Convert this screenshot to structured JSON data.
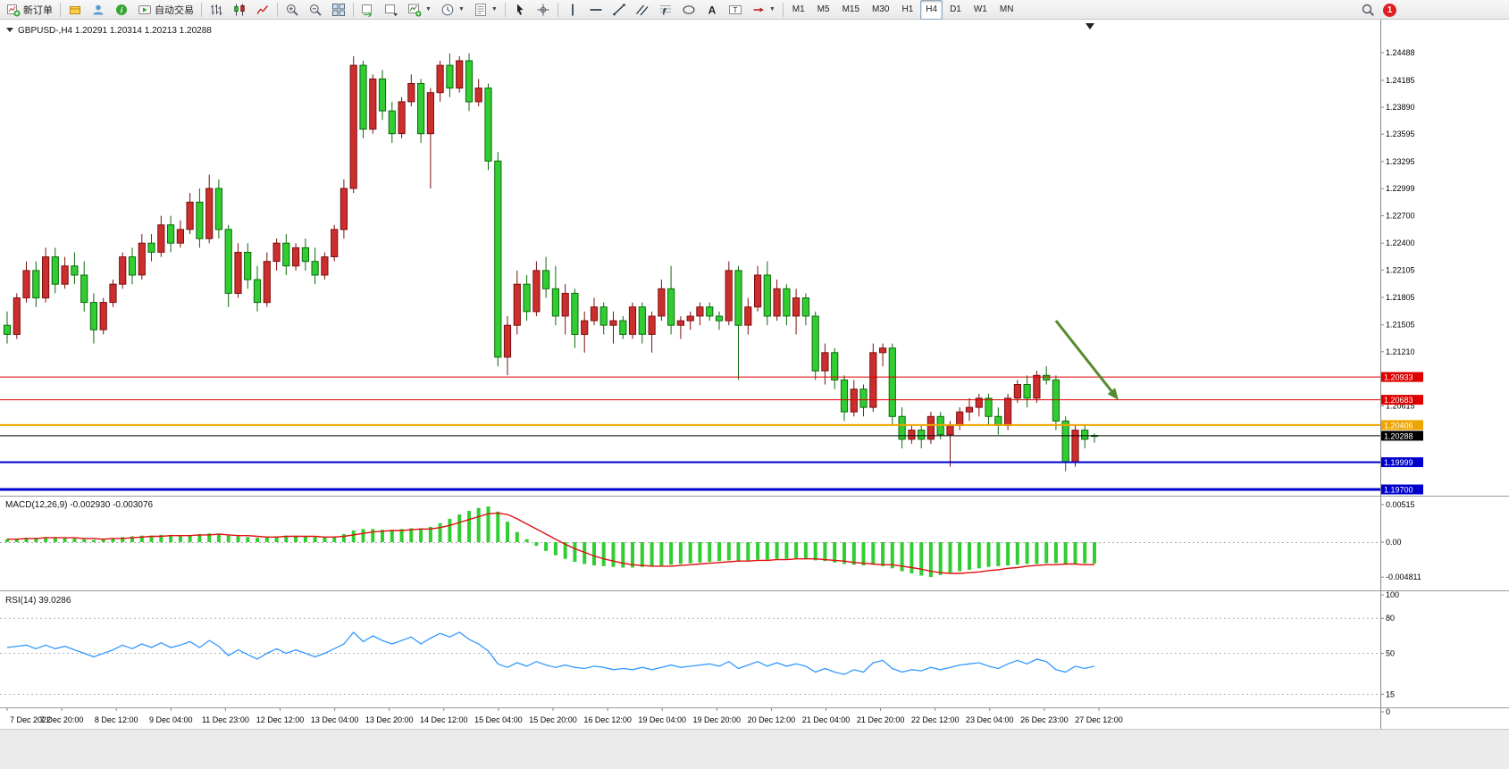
{
  "toolbar": {
    "items": [
      {
        "name": "new-order-button",
        "icon": "new-order-icon",
        "label": "新订单"
      },
      {
        "sep": true
      },
      {
        "name": "market-watch-button",
        "icon": "quotes-icon"
      },
      {
        "name": "data-window-button",
        "icon": "profile-icon"
      },
      {
        "name": "news-button",
        "icon": "news-icon"
      },
      {
        "name": "autotrading-button",
        "icon": "autotrade-icon",
        "label": "自动交易"
      },
      {
        "sep": true
      },
      {
        "name": "bar-chart-button",
        "icon": "ohlc-bars-icon"
      },
      {
        "name": "candlestick-chart-button",
        "icon": "candlestick-icon"
      },
      {
        "name": "line-chart-button",
        "icon": "line-chart-icon"
      },
      {
        "sep": true
      },
      {
        "name": "zoom-in-button",
        "icon": "zoom-in-icon"
      },
      {
        "name": "zoom-out-button",
        "icon": "zoom-out-icon"
      },
      {
        "name": "tile-windows-button",
        "icon": "tile-windows-icon"
      },
      {
        "sep": true
      },
      {
        "name": "auto-scroll-button",
        "icon": "auto-scroll-icon"
      },
      {
        "name": "chart-shift-button",
        "icon": "chart-shift-icon"
      },
      {
        "name": "indicators-button",
        "icon": "indicators-icon",
        "caret": true
      },
      {
        "name": "periods-button",
        "icon": "periods-icon",
        "caret": true
      },
      {
        "name": "templates-button",
        "icon": "templates-icon",
        "caret": true
      },
      {
        "sep": true
      },
      {
        "name": "cursor-button",
        "icon": "cursor-icon"
      },
      {
        "name": "crosshair-button",
        "icon": "crosshair-icon"
      },
      {
        "sep": true
      },
      {
        "name": "vertical-line-button",
        "icon": "vline-icon"
      },
      {
        "name": "horizontal-line-button",
        "icon": "hline-icon"
      },
      {
        "name": "trendline-button",
        "icon": "trendline-icon"
      },
      {
        "name": "channel-button",
        "icon": "channel-icon"
      },
      {
        "name": "fibonacci-button",
        "icon": "fibonacci-icon"
      },
      {
        "name": "shapes-button",
        "icon": "shapes-icon"
      },
      {
        "name": "text-button",
        "icon": "text-icon"
      },
      {
        "name": "label-button",
        "icon": "label-icon"
      },
      {
        "name": "arrows-button",
        "icon": "arrows-icon",
        "caret": true
      },
      {
        "sep": true
      }
    ],
    "timeframes": [
      "M1",
      "M5",
      "M15",
      "M30",
      "H1",
      "H4",
      "D1",
      "W1",
      "MN"
    ],
    "active_timeframe": "H4",
    "notification_count": "1"
  },
  "symbol_header": {
    "symbol": "GBPUSD-",
    "period": "H4",
    "open": "1.20291",
    "high": "1.20314",
    "low": "1.20213",
    "close": "1.20288"
  },
  "indicators": {
    "macd": {
      "title": "MACD(12,26,9)",
      "main_value": "-0.002930",
      "signal_value": "-0.003076",
      "axis_labels": [
        "0.00515",
        "0.00",
        "-0.004811"
      ]
    },
    "rsi": {
      "title": "RSI(14)",
      "value": "39.0286",
      "axis_labels": [
        "100",
        "80",
        "50",
        "15",
        "0"
      ],
      "levels": [
        80,
        50,
        15
      ]
    }
  },
  "chart_data": {
    "type": "candlestick",
    "symbol": "GBPUSD-",
    "timeframe": "H4",
    "price_axis_labels": [
      "1.24488",
      "1.24185",
      "1.23890",
      "1.23595",
      "1.23295",
      "1.22999",
      "1.22700",
      "1.22400",
      "1.22105",
      "1.21805",
      "1.21505",
      "1.21210",
      "1.20615"
    ],
    "date_labels": [
      "7 Dec 2022",
      "7 Dec 20:00",
      "8 Dec 12:00",
      "9 Dec 04:00",
      "11 Dec 23:00",
      "12 Dec 12:00",
      "13 Dec 04:00",
      "13 Dec 20:00",
      "14 Dec 12:00",
      "15 Dec 04:00",
      "15 Dec 20:00",
      "16 Dec 12:00",
      "19 Dec 04:00",
      "19 Dec 20:00",
      "20 Dec 12:00",
      "21 Dec 04:00",
      "21 Dec 20:00",
      "22 Dec 12:00",
      "23 Dec 04:00",
      "26 Dec 23:00",
      "27 Dec 12:00"
    ],
    "hlines": [
      {
        "price": 1.20933,
        "label": "1.20933",
        "color": "#dd0000",
        "width": 1
      },
      {
        "price": 1.20683,
        "label": "1.20683",
        "color": "#dd0000",
        "width": 1
      },
      {
        "price": 1.20406,
        "label": "1.20406",
        "color": "#efa500",
        "width": 2
      },
      {
        "price": 1.20288,
        "label": "1.20288",
        "color": "#000000",
        "width": 1
      },
      {
        "price": 1.19999,
        "label": "1.19999",
        "color": "#0000cc",
        "width": 2
      },
      {
        "price": 1.197,
        "label": "1.19700",
        "color": "#0000cc",
        "width": 3
      }
    ],
    "candles_ohlc": [
      [
        1.215,
        1.2165,
        1.213,
        1.214
      ],
      [
        1.214,
        1.2185,
        1.2135,
        1.218
      ],
      [
        1.218,
        1.222,
        1.2175,
        1.221
      ],
      [
        1.221,
        1.222,
        1.217,
        1.218
      ],
      [
        1.218,
        1.2235,
        1.2175,
        1.2225
      ],
      [
        1.2225,
        1.2235,
        1.2185,
        1.2195
      ],
      [
        1.2195,
        1.2225,
        1.219,
        1.2215
      ],
      [
        1.2215,
        1.223,
        1.2195,
        1.2205
      ],
      [
        1.2205,
        1.222,
        1.2165,
        1.2175
      ],
      [
        1.2175,
        1.2185,
        1.213,
        1.2145
      ],
      [
        1.2145,
        1.218,
        1.214,
        1.2175
      ],
      [
        1.2175,
        1.22,
        1.217,
        1.2195
      ],
      [
        1.2195,
        1.223,
        1.219,
        1.2225
      ],
      [
        1.2225,
        1.2235,
        1.2195,
        1.2205
      ],
      [
        1.2205,
        1.225,
        1.22,
        1.224
      ],
      [
        1.224,
        1.225,
        1.222,
        1.223
      ],
      [
        1.223,
        1.227,
        1.2225,
        1.226
      ],
      [
        1.226,
        1.227,
        1.223,
        1.224
      ],
      [
        1.224,
        1.2265,
        1.2235,
        1.2255
      ],
      [
        1.2255,
        1.2295,
        1.225,
        1.2285
      ],
      [
        1.2285,
        1.23,
        1.2235,
        1.2245
      ],
      [
        1.2245,
        1.2315,
        1.224,
        1.23
      ],
      [
        1.23,
        1.231,
        1.2245,
        1.2255
      ],
      [
        1.2255,
        1.226,
        1.217,
        1.2185
      ],
      [
        1.2185,
        1.224,
        1.218,
        1.223
      ],
      [
        1.223,
        1.224,
        1.219,
        1.22
      ],
      [
        1.22,
        1.2215,
        1.2165,
        1.2175
      ],
      [
        1.2175,
        1.223,
        1.217,
        1.222
      ],
      [
        1.222,
        1.2245,
        1.221,
        1.224
      ],
      [
        1.224,
        1.225,
        1.2205,
        1.2215
      ],
      [
        1.2215,
        1.224,
        1.221,
        1.2235
      ],
      [
        1.2235,
        1.2245,
        1.221,
        1.222
      ],
      [
        1.222,
        1.2235,
        1.2195,
        1.2205
      ],
      [
        1.2205,
        1.223,
        1.22,
        1.2225
      ],
      [
        1.2225,
        1.226,
        1.222,
        1.2255
      ],
      [
        1.2255,
        1.231,
        1.2245,
        1.23
      ],
      [
        1.23,
        1.2445,
        1.2295,
        1.2435
      ],
      [
        1.2435,
        1.244,
        1.2355,
        1.2365
      ],
      [
        1.2365,
        1.2425,
        1.236,
        1.242
      ],
      [
        1.242,
        1.243,
        1.2375,
        1.2385
      ],
      [
        1.2385,
        1.2395,
        1.235,
        1.236
      ],
      [
        1.236,
        1.24,
        1.2355,
        1.2395
      ],
      [
        1.2395,
        1.2425,
        1.239,
        1.2415
      ],
      [
        1.2415,
        1.242,
        1.235,
        1.236
      ],
      [
        1.236,
        1.241,
        1.23,
        1.2405
      ],
      [
        1.2405,
        1.244,
        1.2395,
        1.2435
      ],
      [
        1.2435,
        1.2448,
        1.24,
        1.241
      ],
      [
        1.241,
        1.2445,
        1.2405,
        1.244
      ],
      [
        1.244,
        1.2448,
        1.2385,
        1.2395
      ],
      [
        1.2395,
        1.242,
        1.239,
        1.241
      ],
      [
        1.241,
        1.2415,
        1.232,
        1.233
      ],
      [
        1.233,
        1.234,
        1.2105,
        1.2115
      ],
      [
        1.2115,
        1.216,
        1.2095,
        1.215
      ],
      [
        1.215,
        1.221,
        1.214,
        1.2195
      ],
      [
        1.2195,
        1.2205,
        1.2155,
        1.2165
      ],
      [
        1.2165,
        1.222,
        1.216,
        1.221
      ],
      [
        1.221,
        1.2225,
        1.218,
        1.219
      ],
      [
        1.219,
        1.2215,
        1.215,
        1.216
      ],
      [
        1.216,
        1.2195,
        1.214,
        1.2185
      ],
      [
        1.2185,
        1.219,
        1.2125,
        1.214
      ],
      [
        1.214,
        1.2165,
        1.212,
        1.2155
      ],
      [
        1.2155,
        1.218,
        1.215,
        1.217
      ],
      [
        1.217,
        1.2175,
        1.214,
        1.215
      ],
      [
        1.215,
        1.2165,
        1.213,
        1.2155
      ],
      [
        1.2155,
        1.216,
        1.2135,
        1.214
      ],
      [
        1.214,
        1.2175,
        1.2135,
        1.217
      ],
      [
        1.217,
        1.2175,
        1.213,
        1.214
      ],
      [
        1.214,
        1.2165,
        1.212,
        1.216
      ],
      [
        1.216,
        1.22,
        1.2155,
        1.219
      ],
      [
        1.219,
        1.2215,
        1.214,
        1.215
      ],
      [
        1.215,
        1.216,
        1.2135,
        1.2155
      ],
      [
        1.2155,
        1.2165,
        1.2145,
        1.216
      ],
      [
        1.216,
        1.2175,
        1.215,
        1.217
      ],
      [
        1.217,
        1.2175,
        1.2155,
        1.216
      ],
      [
        1.216,
        1.2165,
        1.2145,
        1.2155
      ],
      [
        1.2155,
        1.222,
        1.215,
        1.221
      ],
      [
        1.221,
        1.2215,
        1.209,
        1.215
      ],
      [
        1.215,
        1.218,
        1.214,
        1.217
      ],
      [
        1.217,
        1.2215,
        1.2165,
        1.2205
      ],
      [
        1.2205,
        1.222,
        1.215,
        1.216
      ],
      [
        1.216,
        1.22,
        1.2155,
        1.219
      ],
      [
        1.219,
        1.2195,
        1.215,
        1.216
      ],
      [
        1.216,
        1.219,
        1.214,
        1.218
      ],
      [
        1.218,
        1.2185,
        1.215,
        1.216
      ],
      [
        1.216,
        1.2165,
        1.209,
        1.21
      ],
      [
        1.21,
        1.213,
        1.2085,
        1.212
      ],
      [
        1.212,
        1.2125,
        1.208,
        1.209
      ],
      [
        1.209,
        1.2095,
        1.2045,
        1.2055
      ],
      [
        1.2055,
        1.209,
        1.205,
        1.208
      ],
      [
        1.208,
        1.2085,
        1.205,
        1.206
      ],
      [
        1.206,
        1.213,
        1.2055,
        1.212
      ],
      [
        1.212,
        1.213,
        1.2105,
        1.2125
      ],
      [
        1.2125,
        1.213,
        1.204,
        1.205
      ],
      [
        1.205,
        1.206,
        1.2015,
        1.2025
      ],
      [
        1.2025,
        1.204,
        1.202,
        1.2035
      ],
      [
        1.2035,
        1.204,
        1.2015,
        1.2025
      ],
      [
        1.2025,
        1.2055,
        1.202,
        1.205
      ],
      [
        1.205,
        1.2055,
        1.2025,
        1.203
      ],
      [
        1.203,
        1.2045,
        1.1995,
        1.204
      ],
      [
        1.204,
        1.206,
        1.2035,
        1.2055
      ],
      [
        1.2055,
        1.207,
        1.2045,
        1.206
      ],
      [
        1.206,
        1.2075,
        1.205,
        1.207
      ],
      [
        1.207,
        1.2075,
        1.204,
        1.205
      ],
      [
        1.205,
        1.206,
        1.203,
        1.204
      ],
      [
        1.204,
        1.2075,
        1.2035,
        1.207
      ],
      [
        1.207,
        1.209,
        1.2065,
        1.2085
      ],
      [
        1.2085,
        1.2095,
        1.206,
        1.207
      ],
      [
        1.207,
        1.21,
        1.2065,
        1.2095
      ],
      [
        1.2095,
        1.2105,
        1.2085,
        1.209
      ],
      [
        1.209,
        1.2095,
        1.2035,
        1.2045
      ],
      [
        1.2045,
        1.205,
        1.199,
        1.2
      ],
      [
        1.2,
        1.204,
        1.1995,
        1.2035
      ],
      [
        1.2035,
        1.204,
        1.2015,
        1.2025
      ],
      [
        1.20291,
        1.20314,
        1.20213,
        1.20288
      ]
    ],
    "macd_histogram": [
      0.0004,
      0.0005,
      0.0006,
      0.0006,
      0.0007,
      0.0007,
      0.0006,
      0.0005,
      0.0004,
      0.0003,
      0.0004,
      0.0005,
      0.0007,
      0.0008,
      0.0009,
      0.0009,
      0.001,
      0.001,
      0.0009,
      0.001,
      0.0011,
      0.0012,
      0.0011,
      0.0009,
      0.0008,
      0.0007,
      0.0006,
      0.0007,
      0.0008,
      0.0009,
      0.0009,
      0.0008,
      0.0007,
      0.0007,
      0.0008,
      0.0011,
      0.0016,
      0.0018,
      0.0018,
      0.0017,
      0.0017,
      0.0018,
      0.0019,
      0.0019,
      0.0021,
      0.0026,
      0.0032,
      0.0038,
      0.0043,
      0.0047,
      0.0049,
      0.0042,
      0.0028,
      0.0014,
      0.0004,
      -0.0005,
      -0.0012,
      -0.0018,
      -0.0023,
      -0.0027,
      -0.003,
      -0.0032,
      -0.0033,
      -0.0034,
      -0.0035,
      -0.0035,
      -0.0034,
      -0.0033,
      -0.0032,
      -0.0031,
      -0.003,
      -0.0029,
      -0.0028,
      -0.0027,
      -0.0026,
      -0.0025,
      -0.0026,
      -0.0025,
      -0.0024,
      -0.0024,
      -0.0023,
      -0.0023,
      -0.0022,
      -0.0023,
      -0.0025,
      -0.0026,
      -0.0028,
      -0.003,
      -0.0031,
      -0.0032,
      -0.0031,
      -0.0033,
      -0.0036,
      -0.004,
      -0.0043,
      -0.0046,
      -0.0048,
      -0.0045,
      -0.0042,
      -0.004,
      -0.0038,
      -0.0036,
      -0.0034,
      -0.0033,
      -0.0032,
      -0.0031,
      -0.003,
      -0.003,
      -0.0029,
      -0.0029,
      -0.00295,
      -0.003,
      -0.0029,
      -0.00293
    ],
    "macd_signal": [
      0.0004,
      0.0004,
      0.0005,
      0.0005,
      0.0006,
      0.0006,
      0.0006,
      0.0006,
      0.0005,
      0.0005,
      0.0004,
      0.0005,
      0.0005,
      0.0006,
      0.0007,
      0.0008,
      0.0008,
      0.0009,
      0.0009,
      0.0009,
      0.001,
      0.001,
      0.0011,
      0.001,
      0.0009,
      0.0009,
      0.0008,
      0.0007,
      0.0007,
      0.0008,
      0.0008,
      0.0008,
      0.0008,
      0.0007,
      0.0007,
      0.0008,
      0.001,
      0.0012,
      0.0014,
      0.0015,
      0.0016,
      0.0016,
      0.0017,
      0.0018,
      0.0018,
      0.002,
      0.0023,
      0.0027,
      0.0031,
      0.0035,
      0.0039,
      0.004,
      0.0038,
      0.0032,
      0.0025,
      0.0018,
      0.0011,
      0.0004,
      -0.0003,
      -0.0009,
      -0.0014,
      -0.0019,
      -0.0023,
      -0.0026,
      -0.0029,
      -0.0031,
      -0.0032,
      -0.0033,
      -0.0033,
      -0.0033,
      -0.0032,
      -0.0031,
      -0.003,
      -0.0029,
      -0.0028,
      -0.0027,
      -0.0026,
      -0.0026,
      -0.0025,
      -0.0025,
      -0.0024,
      -0.0024,
      -0.0023,
      -0.0023,
      -0.0023,
      -0.0024,
      -0.0025,
      -0.0026,
      -0.0028,
      -0.0029,
      -0.003,
      -0.0031,
      -0.0031,
      -0.0033,
      -0.0035,
      -0.0037,
      -0.004,
      -0.0042,
      -0.0043,
      -0.0043,
      -0.0042,
      -0.0041,
      -0.0039,
      -0.0038,
      -0.0036,
      -0.0035,
      -0.0033,
      -0.0032,
      -0.0031,
      -0.0031,
      -0.003,
      -0.003,
      -0.0031,
      -0.003076
    ],
    "rsi_values": [
      55,
      56,
      57,
      54,
      57,
      54,
      56,
      53,
      50,
      47,
      50,
      53,
      57,
      54,
      58,
      55,
      59,
      55,
      57,
      60,
      55,
      61,
      56,
      48,
      53,
      49,
      45,
      50,
      54,
      50,
      53,
      50,
      47,
      50,
      54,
      58,
      68,
      60,
      65,
      61,
      58,
      61,
      64,
      58,
      63,
      67,
      64,
      68,
      62,
      58,
      52,
      41,
      38,
      42,
      39,
      43,
      40,
      38,
      40,
      38,
      37,
      39,
      38,
      36,
      37,
      36,
      38,
      36,
      38,
      40,
      38,
      39,
      40,
      41,
      39,
      43,
      37,
      40,
      43,
      39,
      42,
      39,
      41,
      39,
      34,
      37,
      34,
      32,
      36,
      34,
      42,
      44,
      37,
      34,
      36,
      35,
      38,
      36,
      38,
      40,
      41,
      42,
      39,
      37,
      41,
      44,
      41,
      45,
      43,
      36,
      34,
      39,
      37,
      39.0286
    ],
    "arrow_annotation": {
      "from_candle": 109,
      "from_price": 1.2155,
      "to_candle": 115.5,
      "to_price": 1.2068,
      "color": "#558b2f"
    }
  },
  "colors": {
    "bull": "#cc2e2e",
    "bull_border": "#7a1010",
    "bear": "#32cd32",
    "bear_border": "#0b6b0b",
    "macd_histogram": "#32cd32",
    "macd_signal": "#e01010",
    "rsi_line": "#3399ff",
    "background": "#ffffff",
    "toolbar_bg": "#f0f0f0"
  }
}
